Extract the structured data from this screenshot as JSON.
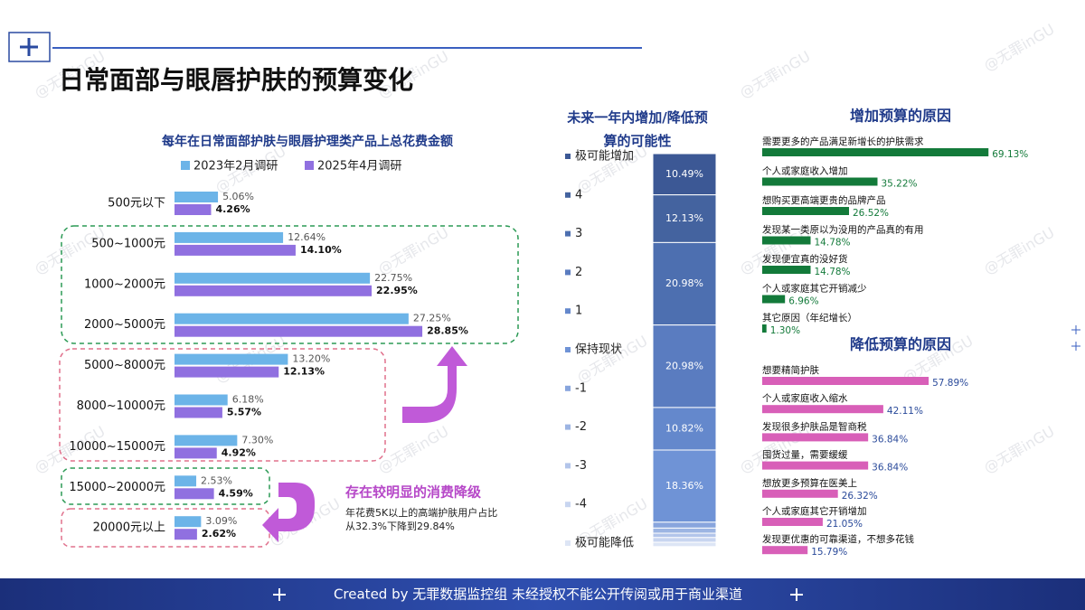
{
  "title": "日常面部与眼唇护肤的预算变化",
  "footer": "Created by 无罪数据监控组 未经授权不能公开传阅或用于商业渠道",
  "watermark": "@无罪inGU",
  "annotation": {
    "title": "存在较明显的消费降级",
    "lines": [
      "年花费5K以上的高端护肤用户占比",
      "从32.3%下降到29.84%"
    ]
  },
  "chart_data": [
    {
      "type": "grouped_hbar",
      "title": "每年在日常面部护肤与眼唇护理类产品上总花费金额",
      "categories": [
        "500元以下",
        "500~1000元",
        "1000~2000元",
        "2000~5000元",
        "5000~8000元",
        "8000~10000元",
        "10000~15000元",
        "15000~20000元",
        "20000元以上"
      ],
      "series": [
        {
          "name": "2023年2月调研",
          "color": "#6cb4e8",
          "values": [
            5.06,
            12.64,
            22.75,
            27.25,
            13.2,
            6.18,
            7.3,
            2.53,
            3.09
          ],
          "value_labels": [
            "5.06%",
            "12.64%",
            "22.75%",
            "27.25%",
            "13.20%",
            "6.18%",
            "7.30%",
            "2.53%",
            "3.09%"
          ]
        },
        {
          "name": "2025年4月调研",
          "color": "#9070e0",
          "values": [
            4.26,
            14.1,
            22.95,
            28.85,
            12.13,
            5.57,
            4.92,
            4.59,
            2.62
          ],
          "value_labels": [
            "4.26%",
            "14.10%",
            "22.95%",
            "28.85%",
            "12.13%",
            "5.57%",
            "4.92%",
            "4.59%",
            "2.62%"
          ]
        }
      ]
    },
    {
      "type": "stacked_bar",
      "title": "未来一年内增加/降低预算的可能性",
      "categories": [
        "极可能增加",
        "4",
        "3",
        "2",
        "1",
        "保持现状",
        "-1",
        "-2",
        "-3",
        "-4",
        "极可能降低"
      ],
      "values": [
        10.49,
        12.13,
        20.98,
        20.98,
        10.82,
        18.36,
        1.5,
        1.3,
        1.1,
        1.2,
        1.1
      ],
      "value_labels": [
        "10.49%",
        "12.13%",
        "20.98%",
        "20.98%",
        "10.82%",
        "18.36%",
        null,
        null,
        null,
        null,
        null
      ],
      "colors": [
        "#3c5895",
        "#44639f",
        "#4d6fb0",
        "#5a7cc0",
        "#6488cc",
        "#6f93d6",
        "#88a5dd",
        "#9db5e3",
        "#b3c5ea",
        "#c8d5f0",
        "#dde5f5"
      ]
    },
    {
      "type": "hbar",
      "title": "增加预算的原因",
      "color": "#137a3a",
      "label_color": "#137a3a",
      "categories": [
        "需要更多的产品满足新增长的护肤需求",
        "个人或家庭收入增加",
        "想购买更高端更贵的品牌产品",
        "发现某一类原以为没用的产品真的有用",
        "发现便宜真的没好货",
        "个人或家庭其它开销减少",
        "其它原因（年纪增长）"
      ],
      "values": [
        69.13,
        35.22,
        26.52,
        14.78,
        14.78,
        6.96,
        1.3
      ],
      "value_labels": [
        "69.13%",
        "35.22%",
        "26.52%",
        "14.78%",
        "14.78%",
        "6.96%",
        "1.30%"
      ]
    },
    {
      "type": "hbar",
      "title": "降低预算的原因",
      "color": "#d85fb8",
      "label_color": "#2a4a9a",
      "categories": [
        "想要精简护肤",
        "个人或家庭收入缩水",
        "发现很多护肤品是智商税",
        "囤货过量，需要缓缓",
        "想放更多预算在医美上",
        "个人或家庭其它开销增加",
        "发现更优惠的可靠渠道，不想多花钱"
      ],
      "values": [
        57.89,
        42.11,
        36.84,
        36.84,
        26.32,
        21.05,
        15.79
      ],
      "value_labels": [
        "57.89%",
        "42.11%",
        "36.84%",
        "36.84%",
        "26.32%",
        "21.05%",
        "15.79%"
      ]
    }
  ]
}
